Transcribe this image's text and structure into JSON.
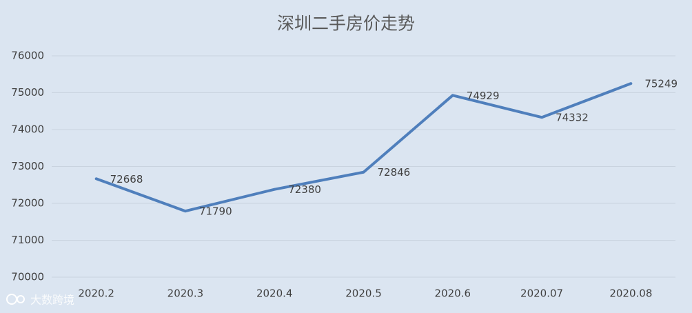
{
  "chart_data": {
    "type": "line",
    "title": "深圳二手房价走势",
    "categories": [
      "2020.2",
      "2020.3",
      "2020.4",
      "2020.5",
      "2020.6",
      "2020.07",
      "2020.08"
    ],
    "values": [
      72668,
      71790,
      72380,
      72846,
      74929,
      74332,
      75249
    ],
    "color": "#4f7fbc",
    "ylim": [
      70000,
      76000
    ],
    "yticks": [
      70000,
      71000,
      72000,
      73000,
      74000,
      75000,
      76000
    ],
    "grid": true,
    "data_labels": true
  },
  "watermark": "大数跨境"
}
